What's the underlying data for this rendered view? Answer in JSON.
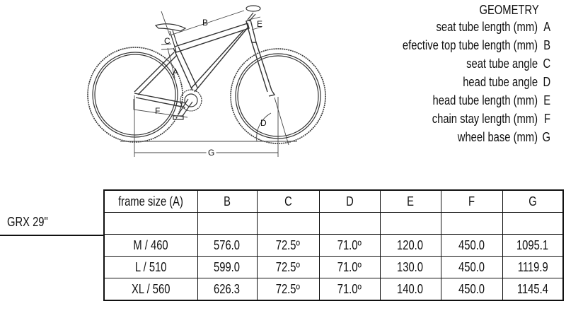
{
  "legend": {
    "title": "GEOMETRY",
    "items": [
      {
        "label": "seat tube length (mm)",
        "letter": "A"
      },
      {
        "label": "efective top tube length (mm)",
        "letter": "B"
      },
      {
        "label": "seat tube angle",
        "letter": "C"
      },
      {
        "label": "head tube angle",
        "letter": "D"
      },
      {
        "label": "head tube length (mm)",
        "letter": "E"
      },
      {
        "label": "chain stay length (mm)",
        "letter": "F"
      },
      {
        "label": "wheel base (mm)",
        "letter": "G"
      }
    ]
  },
  "diagram_labels": {
    "A": "A",
    "B": "B",
    "C": "C",
    "D": "D",
    "E": "E",
    "F": "F",
    "G": "G"
  },
  "model": "GRX 29\"",
  "table": {
    "headers": [
      "frame size (A)",
      "B",
      "C",
      "D",
      "E",
      "F",
      "G"
    ],
    "rows": [
      [
        "",
        "",
        "",
        "",
        "",
        "",
        ""
      ],
      [
        "M / 460",
        "576.0",
        "72.5º",
        "71.0º",
        "120.0",
        "450.0",
        "1095.1"
      ],
      [
        "L / 510",
        "599.0",
        "72.5º",
        "71.0º",
        "130.0",
        "450.0",
        "1119.9"
      ],
      [
        "XL / 560",
        "626.3",
        "72.5º",
        "71.0º",
        "140.0",
        "450.0",
        "1145.4"
      ]
    ]
  }
}
